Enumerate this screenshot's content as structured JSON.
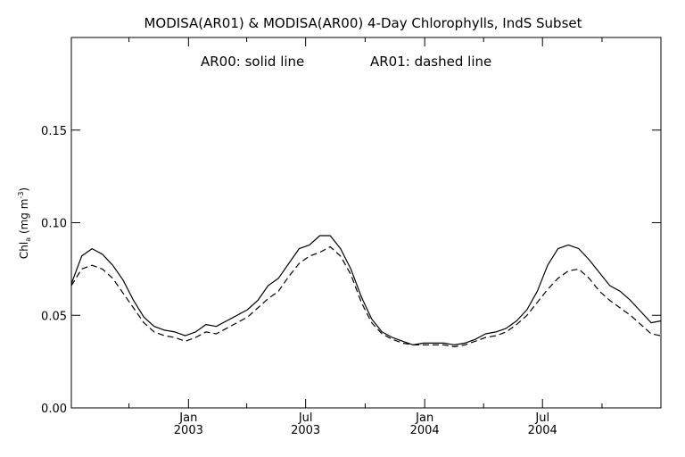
{
  "chart_data": {
    "type": "line",
    "title": "MODISA(AR01) & MODISA(AR00) 4-Day Chlorophylls, IndS Subset",
    "annotation": {
      "solid": "AR00: solid line",
      "dashed": "AR01: dashed line"
    },
    "ylabel": "Chl_a (mg m^-3)",
    "ylabel_parts": {
      "main": "Chl",
      "sub": "a",
      "unit_open": " (mg m",
      "sup": "-3",
      "unit_close": ")"
    },
    "ylim": [
      0.0,
      0.2
    ],
    "yticks": [
      {
        "value": 0.0,
        "label": "0.00"
      },
      {
        "value": 0.05,
        "label": "0.05"
      },
      {
        "value": 0.1,
        "label": "0.10"
      },
      {
        "value": 0.15,
        "label": "0.15"
      }
    ],
    "xlim": [
      "2002-07-04",
      "2004-12-31"
    ],
    "xtick_major": [
      {
        "date": "2003-01-01",
        "month": "Jan",
        "year": "2003"
      },
      {
        "date": "2003-07-01",
        "month": "Jul",
        "year": "2003"
      },
      {
        "date": "2004-01-01",
        "month": "Jan",
        "year": "2004"
      },
      {
        "date": "2004-07-01",
        "month": "Jul",
        "year": "2004"
      }
    ],
    "xtick_minor": [
      "2002-10-01",
      "2003-04-01",
      "2003-10-01",
      "2004-04-01",
      "2004-10-01"
    ],
    "grid": false,
    "series": [
      {
        "name": "AR00",
        "style": "solid",
        "x": [
          "2002-07-04",
          "2002-07-20",
          "2002-08-05",
          "2002-08-21",
          "2002-09-06",
          "2002-09-22",
          "2002-10-08",
          "2002-10-24",
          "2002-11-09",
          "2002-11-25",
          "2002-12-11",
          "2002-12-27",
          "2003-01-12",
          "2003-01-28",
          "2003-02-13",
          "2003-03-01",
          "2003-03-17",
          "2003-04-02",
          "2003-04-18",
          "2003-05-04",
          "2003-05-20",
          "2003-06-05",
          "2003-06-21",
          "2003-07-07",
          "2003-07-23",
          "2003-08-08",
          "2003-08-24",
          "2003-09-09",
          "2003-09-25",
          "2003-10-11",
          "2003-10-27",
          "2003-11-12",
          "2003-11-28",
          "2003-12-14",
          "2003-12-30",
          "2004-01-15",
          "2004-01-31",
          "2004-02-16",
          "2004-03-03",
          "2004-03-19",
          "2004-04-04",
          "2004-04-20",
          "2004-05-06",
          "2004-05-22",
          "2004-06-07",
          "2004-06-23",
          "2004-07-09",
          "2004-07-25",
          "2004-08-10",
          "2004-08-26",
          "2004-09-11",
          "2004-09-27",
          "2004-10-13",
          "2004-10-29",
          "2004-11-14",
          "2004-11-30",
          "2004-12-16",
          "2004-12-31"
        ],
        "y": [
          0.067,
          0.082,
          0.086,
          0.083,
          0.077,
          0.069,
          0.058,
          0.049,
          0.044,
          0.042,
          0.041,
          0.039,
          0.041,
          0.045,
          0.044,
          0.047,
          0.05,
          0.053,
          0.058,
          0.066,
          0.07,
          0.078,
          0.086,
          0.088,
          0.093,
          0.093,
          0.086,
          0.075,
          0.06,
          0.048,
          0.041,
          0.038,
          0.036,
          0.034,
          0.035,
          0.035,
          0.035,
          0.034,
          0.035,
          0.037,
          0.04,
          0.041,
          0.043,
          0.047,
          0.053,
          0.063,
          0.077,
          0.086,
          0.088,
          0.086,
          0.08,
          0.073,
          0.066,
          0.063,
          0.058,
          0.052,
          0.046,
          0.047
        ]
      },
      {
        "name": "AR01",
        "style": "dashed",
        "x": [
          "2002-07-04",
          "2002-07-20",
          "2002-08-05",
          "2002-08-21",
          "2002-09-06",
          "2002-09-22",
          "2002-10-08",
          "2002-10-24",
          "2002-11-09",
          "2002-11-25",
          "2002-12-11",
          "2002-12-27",
          "2003-01-12",
          "2003-01-28",
          "2003-02-13",
          "2003-03-01",
          "2003-03-17",
          "2003-04-02",
          "2003-04-18",
          "2003-05-04",
          "2003-05-20",
          "2003-06-05",
          "2003-06-21",
          "2003-07-07",
          "2003-07-23",
          "2003-08-08",
          "2003-08-24",
          "2003-09-09",
          "2003-09-25",
          "2003-10-11",
          "2003-10-27",
          "2003-11-12",
          "2003-11-28",
          "2003-12-14",
          "2003-12-30",
          "2004-01-15",
          "2004-01-31",
          "2004-02-16",
          "2004-03-03",
          "2004-03-19",
          "2004-04-04",
          "2004-04-20",
          "2004-05-06",
          "2004-05-22",
          "2004-06-07",
          "2004-06-23",
          "2004-07-09",
          "2004-07-25",
          "2004-08-10",
          "2004-08-26",
          "2004-09-11",
          "2004-09-27",
          "2004-10-13",
          "2004-10-29",
          "2004-11-14",
          "2004-11-30",
          "2004-12-16",
          "2004-12-31"
        ],
        "y": [
          0.066,
          0.075,
          0.077,
          0.075,
          0.07,
          0.062,
          0.054,
          0.046,
          0.041,
          0.039,
          0.038,
          0.036,
          0.038,
          0.041,
          0.04,
          0.043,
          0.046,
          0.049,
          0.054,
          0.059,
          0.063,
          0.071,
          0.078,
          0.082,
          0.084,
          0.087,
          0.082,
          0.072,
          0.057,
          0.046,
          0.04,
          0.037,
          0.035,
          0.034,
          0.034,
          0.034,
          0.034,
          0.033,
          0.034,
          0.036,
          0.038,
          0.039,
          0.041,
          0.045,
          0.05,
          0.057,
          0.064,
          0.07,
          0.074,
          0.075,
          0.07,
          0.063,
          0.058,
          0.054,
          0.05,
          0.045,
          0.04,
          0.039
        ]
      }
    ]
  }
}
